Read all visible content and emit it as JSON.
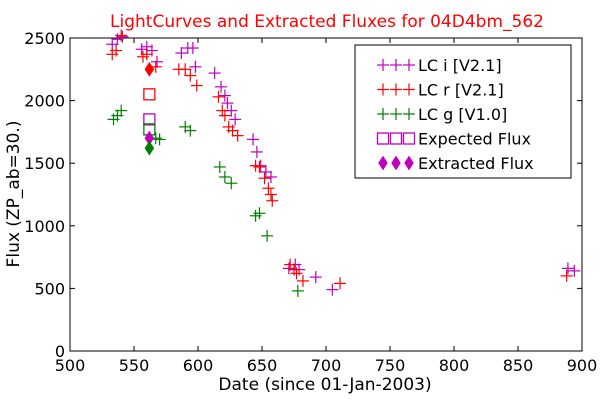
{
  "chart_data": {
    "type": "scatter",
    "title": "LightCurves and Extracted Fluxes for 04D4bm_562",
    "title_color": "#ff0000",
    "xlabel": "Date (since 01-Jan-2003)",
    "ylabel": "Flux (ZP_ab=30.)",
    "xlim": [
      500,
      900
    ],
    "ylim": [
      0,
      2500
    ],
    "xticks": [
      500,
      550,
      600,
      650,
      700,
      750,
      800,
      850,
      900
    ],
    "yticks": [
      0,
      500,
      1000,
      1500,
      2000,
      2500
    ],
    "grid": false,
    "legend_position": "upper-right",
    "series": [
      {
        "name": "LC i [V2.1]",
        "marker": "plus",
        "color": "#bf00bf",
        "points": [
          [
            533,
            2450
          ],
          [
            537,
            2490
          ],
          [
            541,
            2510
          ],
          [
            556,
            2410
          ],
          [
            560,
            2430
          ],
          [
            564,
            2400
          ],
          [
            568,
            2310
          ],
          [
            587,
            2380
          ],
          [
            592,
            2420
          ],
          [
            596,
            2420
          ],
          [
            598,
            2270
          ],
          [
            613,
            2220
          ],
          [
            618,
            2110
          ],
          [
            621,
            2040
          ],
          [
            623,
            1980
          ],
          [
            626,
            1920
          ],
          [
            629,
            1850
          ],
          [
            643,
            1690
          ],
          [
            646,
            1590
          ],
          [
            649,
            1480
          ],
          [
            653,
            1430
          ],
          [
            657,
            1390
          ],
          [
            671,
            660
          ],
          [
            676,
            690
          ],
          [
            679,
            650
          ],
          [
            692,
            590
          ],
          [
            705,
            490
          ],
          [
            889,
            660
          ],
          [
            894,
            640
          ]
        ]
      },
      {
        "name": "LC r [V2.1]",
        "marker": "plus",
        "color": "#ff0000",
        "points": [
          [
            533,
            2370
          ],
          [
            536,
            2400
          ],
          [
            540,
            2520
          ],
          [
            557,
            2350
          ],
          [
            560,
            2370
          ],
          [
            567,
            2270
          ],
          [
            585,
            2250
          ],
          [
            590,
            2250
          ],
          [
            594,
            2200
          ],
          [
            599,
            2120
          ],
          [
            616,
            2030
          ],
          [
            619,
            1920
          ],
          [
            621,
            1880
          ],
          [
            624,
            1790
          ],
          [
            627,
            1760
          ],
          [
            631,
            1720
          ],
          [
            645,
            1480
          ],
          [
            648,
            1470
          ],
          [
            652,
            1380
          ],
          [
            655,
            1300
          ],
          [
            657,
            1250
          ],
          [
            658,
            1200
          ],
          [
            672,
            690
          ],
          [
            675,
            650
          ],
          [
            677,
            620
          ],
          [
            682,
            560
          ],
          [
            711,
            540
          ],
          [
            888,
            600
          ]
        ]
      },
      {
        "name": "LC g [V1.0]",
        "marker": "plus",
        "color": "#008000",
        "points": [
          [
            534,
            1850
          ],
          [
            537,
            1880
          ],
          [
            540,
            1920
          ],
          [
            567,
            1700
          ],
          [
            570,
            1690
          ],
          [
            590,
            1790
          ],
          [
            594,
            1760
          ],
          [
            617,
            1470
          ],
          [
            621,
            1390
          ],
          [
            626,
            1340
          ],
          [
            645,
            1080
          ],
          [
            648,
            1100
          ],
          [
            654,
            920
          ],
          [
            678,
            480
          ]
        ]
      },
      {
        "name": "Expected Flux",
        "marker": "square-open",
        "colors": [
          "#ff0000",
          "#bf00bf",
          "#008000"
        ],
        "points": [
          [
            562,
            2050
          ],
          [
            562,
            1850
          ],
          [
            562,
            1770
          ]
        ]
      },
      {
        "name": "Extracted Flux",
        "marker": "diamond-filled",
        "colors": [
          "#ff0000",
          "#bf00bf",
          "#008000"
        ],
        "points": [
          [
            562,
            2250
          ],
          [
            562,
            1700
          ],
          [
            562,
            1620
          ]
        ]
      }
    ]
  }
}
